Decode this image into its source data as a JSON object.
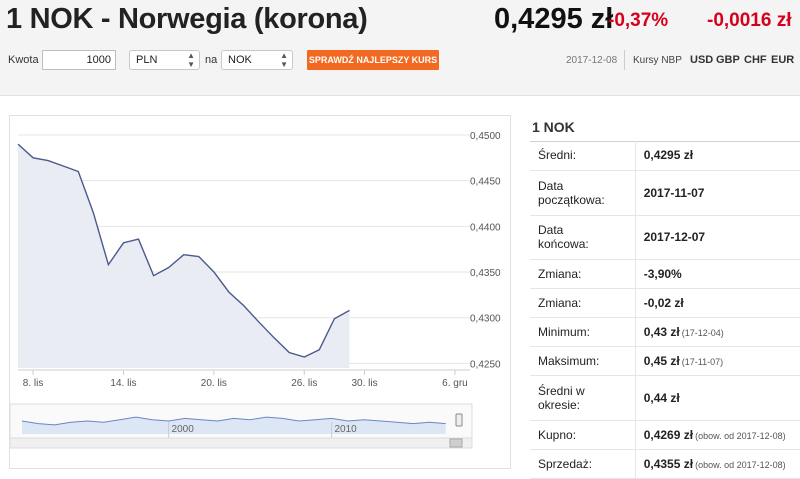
{
  "header": {
    "title": "1 NOK - Norwegia (korona)",
    "rate": "0,4295 zł",
    "change_percent": "-0,37%",
    "change_value": "-0,0016 zł"
  },
  "toolbar": {
    "amount_label": "Kwota",
    "amount_value": "1000",
    "from_currency": "PLN",
    "na_label": "na",
    "to_currency": "NOK",
    "button_label": "SPRAWDŹ NAJLEPSZY KURS",
    "date": "2017-12-08",
    "nbp_label": "Kursy NBP",
    "currencies": [
      "USD",
      "GBP",
      "CHF",
      "EUR"
    ]
  },
  "panel": {
    "title": "1 NOK",
    "rows": [
      {
        "label": "Średni:",
        "value": "0,4295 zł",
        "note": ""
      },
      {
        "label": "Data początkowa:",
        "value": "2017-11-07",
        "note": ""
      },
      {
        "label": "Data końcowa:",
        "value": "2017-12-07",
        "note": ""
      },
      {
        "label": "Zmiana:",
        "value": "-3,90%",
        "note": ""
      },
      {
        "label": "Zmiana:",
        "value": "-0,02 zł",
        "note": ""
      },
      {
        "label": "Minimum:",
        "value": "0,43 zł",
        "note": "(17-12-04)"
      },
      {
        "label": "Maksimum:",
        "value": "0,45 zł",
        "note": "(17-11-07)"
      },
      {
        "label": "Średni w okresie:",
        "value": "0,44 zł",
        "note": ""
      },
      {
        "label": "Kupno:",
        "value": "0,4269 zł",
        "note": "(obow. od 2017-12-08)"
      },
      {
        "label": "Sprzedaż:",
        "value": "0,4355 zł",
        "note": "(obow. od 2017-12-08)"
      }
    ]
  },
  "chart_data": {
    "type": "area",
    "y_ticks": [
      "0,4500",
      "0,4450",
      "0,4400",
      "0,4350",
      "0,4300",
      "0,4250"
    ],
    "ylim": [
      0.4245,
      0.4512
    ],
    "x_ticks": [
      {
        "day": 1,
        "label": "8. lis"
      },
      {
        "day": 7,
        "label": "14. lis"
      },
      {
        "day": 13,
        "label": "20. lis"
      },
      {
        "day": 19,
        "label": "26. lis"
      },
      {
        "day": 23,
        "label": "30. lis"
      },
      {
        "day": 29,
        "label": "6. gru"
      }
    ],
    "xlim": [
      0,
      30
    ],
    "points": [
      [
        0,
        0.449
      ],
      [
        1,
        0.4475
      ],
      [
        2,
        0.4472
      ],
      [
        3,
        0.4466
      ],
      [
        4,
        0.446
      ],
      [
        5,
        0.4415
      ],
      [
        6,
        0.4358
      ],
      [
        7,
        0.4382
      ],
      [
        8,
        0.4386
      ],
      [
        9,
        0.4346
      ],
      [
        10,
        0.4355
      ],
      [
        11,
        0.4369
      ],
      [
        12,
        0.4367
      ],
      [
        13,
        0.435
      ],
      [
        14,
        0.4328
      ],
      [
        15,
        0.4313
      ],
      [
        16,
        0.4295
      ],
      [
        17,
        0.4278
      ],
      [
        18,
        0.4262
      ],
      [
        19,
        0.4257
      ],
      [
        20,
        0.4265
      ],
      [
        21,
        0.4299
      ],
      [
        22,
        0.4308
      ]
    ],
    "navigator": {
      "x_ticks": [
        "2000",
        "2010"
      ],
      "points": [
        [
          1991,
          0.3
        ],
        [
          1992,
          0.28
        ],
        [
          1993,
          0.27
        ],
        [
          1994,
          0.29
        ],
        [
          1995,
          0.3
        ],
        [
          1996,
          0.29
        ],
        [
          1997,
          0.31
        ],
        [
          1998,
          0.33
        ],
        [
          1999,
          0.31
        ],
        [
          2000,
          0.3
        ],
        [
          2001,
          0.32
        ],
        [
          2002,
          0.31
        ],
        [
          2003,
          0.3
        ],
        [
          2004,
          0.32
        ],
        [
          2005,
          0.31
        ],
        [
          2006,
          0.33
        ],
        [
          2007,
          0.32
        ],
        [
          2008,
          0.3
        ],
        [
          2009,
          0.31
        ],
        [
          2010,
          0.32
        ],
        [
          2011,
          0.3
        ],
        [
          2012,
          0.31
        ],
        [
          2013,
          0.3
        ],
        [
          2014,
          0.29
        ],
        [
          2015,
          0.28
        ],
        [
          2016,
          0.29
        ],
        [
          2017,
          0.28
        ]
      ],
      "xlim": [
        1991,
        2018
      ],
      "ylim": [
        0.2,
        0.4
      ]
    },
    "colors": {
      "line": "#4a5a8c",
      "fill": "#e9ecf3",
      "nav_line": "#6b86c2",
      "nav_fill": "#dde6f5",
      "grid": "#e6e6e6"
    }
  },
  "colors": {
    "accent": "#f26a21",
    "negative": "#d6001c"
  }
}
